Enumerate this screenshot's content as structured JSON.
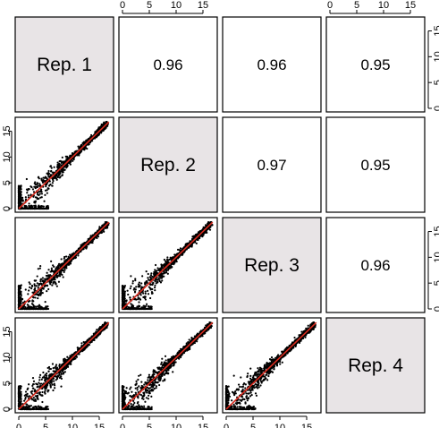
{
  "chart_data": {
    "type": "scatter",
    "variables": [
      "Rep. 1",
      "Rep. 2",
      "Rep. 3",
      "Rep. 4"
    ],
    "correlations": [
      [
        "",
        "0.96",
        "0.96",
        "0.95"
      ],
      [
        "",
        "",
        "0.97",
        "0.95"
      ],
      [
        "",
        "",
        "",
        "0.96"
      ],
      [
        "",
        "",
        "",
        ""
      ]
    ],
    "axis_range": [
      0,
      17
    ],
    "ticks": [
      0,
      5,
      10,
      15
    ],
    "tick_labels": [
      "0",
      "5",
      "10",
      "15"
    ],
    "fit_line": {
      "slope": 1,
      "intercept": 0
    },
    "colors": {
      "diagonal_fill": "#e8e4e6",
      "points": "#000000",
      "fit_line": "#d62a1e"
    }
  }
}
